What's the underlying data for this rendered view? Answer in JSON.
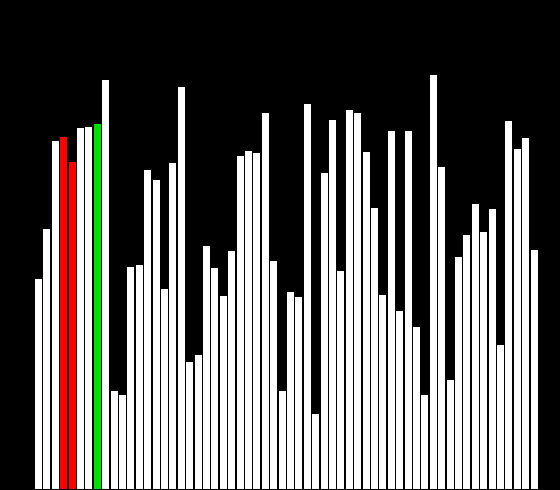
{
  "window": {
    "background": "#000000"
  },
  "visualization": {
    "bar_count": 60,
    "highlighted_indices": {
      "compare": [
        3,
        4
      ],
      "current": [
        7
      ]
    },
    "colors": {
      "default": "#ffffff",
      "compare": "#ff0000",
      "current": "#00e000",
      "outline": "#000000"
    }
  },
  "chart_data": {
    "type": "bar",
    "values": [
      302,
      374,
      500,
      506,
      470,
      518,
      520,
      524,
      586,
      142,
      136,
      320,
      322,
      458,
      444,
      288,
      468,
      576,
      184,
      194,
      350,
      318,
      278,
      342,
      478,
      486,
      482,
      540,
      328,
      142,
      284,
      276,
      552,
      110,
      454,
      530,
      314,
      544,
      540,
      484,
      404,
      280,
      514,
      256,
      514,
      234,
      136,
      594,
      462,
      158,
      334,
      366,
      410,
      370,
      402,
      208,
      528,
      488,
      504,
      344
    ],
    "ylim": [
      0,
      700
    ]
  }
}
